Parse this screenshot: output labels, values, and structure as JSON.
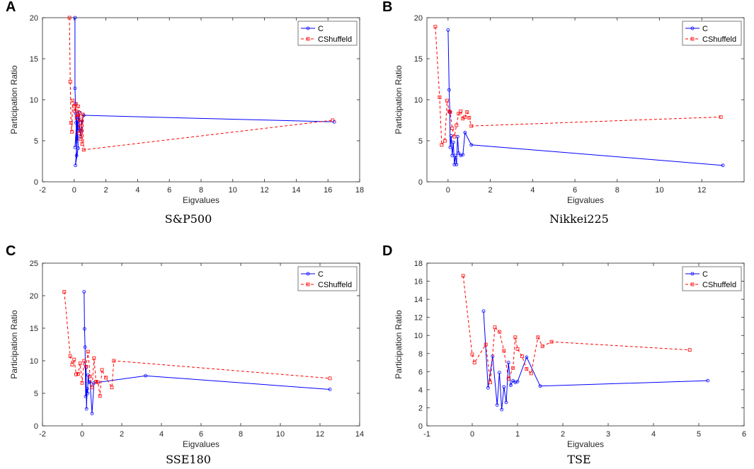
{
  "chart_data": [
    {
      "panel": "A",
      "caption": "S&P500",
      "type": "line",
      "xlabel": "Eigvalues",
      "ylabel": "Participation Ratio",
      "xlim": [
        -2,
        18
      ],
      "ylim": [
        0,
        20
      ],
      "xticks": [
        "-2",
        "0",
        "2",
        "4",
        "6",
        "8",
        "10",
        "12",
        "14",
        "16",
        "18"
      ],
      "yticks": [
        "0",
        "5",
        "10",
        "15",
        "20"
      ],
      "legend": "top-right",
      "series": [
        {
          "name": "C",
          "color": "#0000ff",
          "style": "solid",
          "marker": "circle",
          "x": [
            0.05,
            0.05,
            0.08,
            0.1,
            0.12,
            0.15,
            0.18,
            0.05,
            0.2,
            0.25,
            0.08,
            0.3,
            0.35,
            0.4,
            0.45,
            0.5,
            0.6,
            16.4
          ],
          "y": [
            20,
            11.4,
            9.5,
            8.3,
            7.2,
            3.2,
            8,
            4.2,
            7.5,
            4.1,
            2,
            8.5,
            6.4,
            5.5,
            6.2,
            7.4,
            8.1,
            7.3
          ]
        },
        {
          "name": "CShuffeld",
          "color": "#ff0000",
          "style": "dashed",
          "marker": "square",
          "x": [
            -0.3,
            -0.25,
            -0.2,
            -0.15,
            -0.1,
            0,
            0.05,
            0.1,
            0.15,
            0.2,
            0.25,
            0.3,
            0.35,
            0.4,
            0.45,
            0.5,
            0.55,
            0.6,
            16.3
          ],
          "y": [
            20,
            12.2,
            7.2,
            6.1,
            9.9,
            9.2,
            8.6,
            9.5,
            7.8,
            8.2,
            9.2,
            5.9,
            8.4,
            5.2,
            7.6,
            4.6,
            8.2,
            3.9,
            7.5
          ]
        }
      ]
    },
    {
      "panel": "B",
      "caption": "Nikkei225",
      "type": "line",
      "xlabel": "Eigvalues",
      "ylabel": "Participation Ratio",
      "xlim": [
        -1,
        14
      ],
      "ylim": [
        0,
        20
      ],
      "xticks": [
        "0",
        "2",
        "4",
        "6",
        "8",
        "10",
        "12"
      ],
      "yticks": [
        "0",
        "5",
        "10",
        "15",
        "20"
      ],
      "legend": "top-right",
      "series": [
        {
          "name": "C",
          "color": "#0000ff",
          "style": "solid",
          "marker": "circle",
          "x": [
            0,
            0.05,
            0.08,
            0.1,
            0.15,
            0.2,
            0.25,
            0.3,
            0.35,
            0.4,
            0.45,
            0.5,
            0.6,
            0.7,
            0.8,
            1.1,
            13
          ],
          "y": [
            18.5,
            11.2,
            8.5,
            4.2,
            5.6,
            3.2,
            4.8,
            2.1,
            3.2,
            2.1,
            5.5,
            3.5,
            3.2,
            3.3,
            6,
            4.5,
            2
          ]
        },
        {
          "name": "CShuffeld",
          "color": "#ff0000",
          "style": "dashed",
          "marker": "square",
          "x": [
            -0.6,
            -0.4,
            -0.3,
            -0.15,
            -0.05,
            0.05,
            0.1,
            0.2,
            0.3,
            0.4,
            0.5,
            0.6,
            0.7,
            0.8,
            0.9,
            1.0,
            1.1,
            12.9
          ],
          "y": [
            18.9,
            10.3,
            4.5,
            5,
            9.9,
            8.6,
            8.5,
            6.5,
            5.5,
            6.9,
            8.3,
            8.6,
            7.7,
            7.9,
            8.5,
            7.8,
            6.8,
            7.9
          ]
        }
      ]
    },
    {
      "panel": "C",
      "caption": "SSE180",
      "type": "line",
      "xlabel": "Eigvalues",
      "ylabel": "Participation Ratio",
      "xlim": [
        -2,
        14
      ],
      "ylim": [
        0,
        25
      ],
      "xticks": [
        "-2",
        "0",
        "2",
        "4",
        "6",
        "8",
        "10",
        "12",
        "14"
      ],
      "yticks": [
        "0",
        "5",
        "10",
        "15",
        "20",
        "25"
      ],
      "legend": "top-right",
      "series": [
        {
          "name": "C",
          "color": "#0000ff",
          "style": "solid",
          "marker": "circle",
          "x": [
            0.1,
            0.12,
            0.15,
            0.18,
            0.2,
            0.22,
            0.25,
            0.28,
            0.3,
            0.35,
            0.4,
            0.5,
            0.6,
            3.2,
            12.5
          ],
          "y": [
            20.6,
            14.9,
            12.1,
            4.5,
            9,
            2.6,
            5.7,
            5,
            7.8,
            6.7,
            6.7,
            1.9,
            6.6,
            7.7,
            5.6
          ]
        },
        {
          "name": "CShuffeld",
          "color": "#ff0000",
          "style": "dashed",
          "marker": "square",
          "x": [
            -0.9,
            -0.6,
            -0.5,
            -0.4,
            -0.3,
            -0.2,
            -0.1,
            0,
            0.1,
            0.2,
            0.3,
            0.4,
            0.5,
            0.6,
            0.7,
            0.8,
            0.9,
            1.0,
            1.2,
            1.5,
            1.6,
            12.5
          ],
          "y": [
            20.6,
            10.7,
            9.4,
            10.2,
            7.9,
            8,
            9.6,
            6.6,
            10,
            9.1,
            11.4,
            7.6,
            5.9,
            10.4,
            6.8,
            6.7,
            4.6,
            8.6,
            7.4,
            5.9,
            10,
            7.3
          ]
        }
      ]
    },
    {
      "panel": "D",
      "caption": "TSE",
      "type": "line",
      "xlabel": "Eigvalues",
      "ylabel": "Participation Ratio",
      "xlim": [
        -1,
        6
      ],
      "ylim": [
        0,
        18
      ],
      "xticks": [
        "-1",
        "0",
        "1",
        "2",
        "3",
        "4",
        "5",
        "6"
      ],
      "yticks": [
        "0",
        "2",
        "4",
        "6",
        "8",
        "10",
        "12",
        "14",
        "16",
        "18"
      ],
      "legend": "top-right",
      "series": [
        {
          "name": "C",
          "color": "#0000ff",
          "style": "solid",
          "marker": "circle",
          "x": [
            0.25,
            0.35,
            0.45,
            0.55,
            0.6,
            0.65,
            0.7,
            0.75,
            0.8,
            0.85,
            0.9,
            0.95,
            1.0,
            1.2,
            1.5,
            5.2
          ],
          "y": [
            12.7,
            4.2,
            7.7,
            2.3,
            5.9,
            1.8,
            4.3,
            2.6,
            7,
            4.5,
            5,
            4.8,
            4.9,
            7.6,
            4.4,
            5
          ]
        },
        {
          "name": "CShuffeld",
          "color": "#ff0000",
          "style": "dashed",
          "marker": "square",
          "x": [
            -0.2,
            0,
            0.05,
            0.3,
            0.4,
            0.5,
            0.6,
            0.7,
            0.8,
            0.9,
            0.95,
            1.0,
            1.1,
            1.2,
            1.3,
            1.45,
            1.55,
            1.75,
            4.8
          ],
          "y": [
            16.6,
            7.9,
            7,
            9,
            4.8,
            10.9,
            10.4,
            8.3,
            5.2,
            6.4,
            9.8,
            8.5,
            7.7,
            6.3,
            5.8,
            9.8,
            8.8,
            9.3,
            8.4
          ]
        }
      ]
    }
  ]
}
